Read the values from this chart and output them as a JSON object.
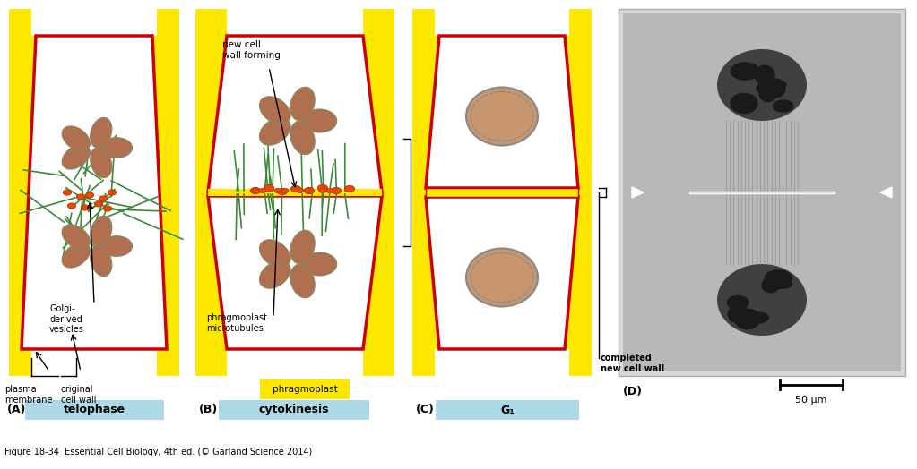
{
  "fig_width": 10.23,
  "fig_height": 5.24,
  "bg_color": "#ffffff",
  "yellow": "#FFE800",
  "red": "#CC0000",
  "light_blue": "#ADD8E6",
  "green": "#2E8B57",
  "orange": "#FF6600",
  "brown": "#A0522D",
  "light_brown": "#D2A679",
  "panel_labels": [
    "(A)",
    "(B)",
    "(C)",
    "(D)"
  ],
  "stage_labels": [
    "telophase",
    "cytokinesis",
    "G₁"
  ],
  "figure_caption": "Figure 18-34  Essential Cell Biology, 4th ed. (© Garland Science 2014)",
  "annotations_A": [
    "plasma\nmembrane",
    "original\ncell wall",
    "Golgi-\nderived\nvesicles",
    "phragmoplast\nmicrotubules"
  ],
  "annotations_B": [
    "new cell\nwall forming",
    "phragmoplast"
  ],
  "annotations_C": [
    "completed\nnew cell wall"
  ],
  "scale_bar": "50 μm"
}
